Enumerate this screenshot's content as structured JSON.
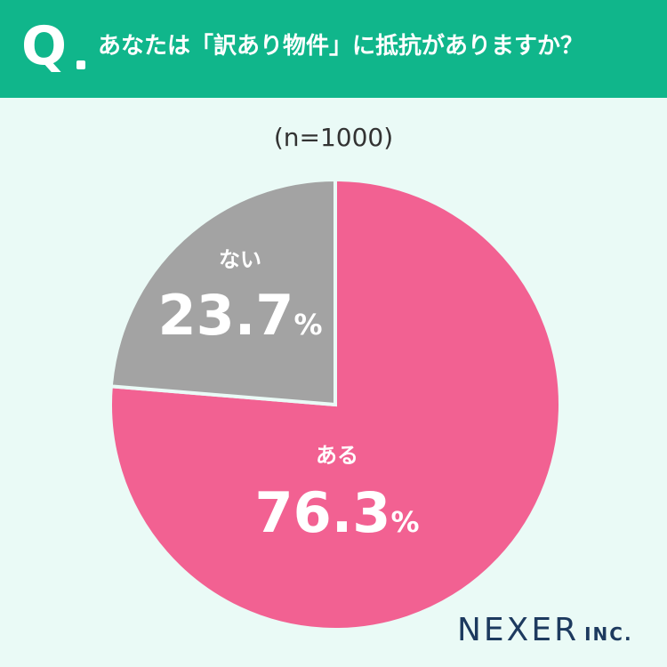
{
  "header": {
    "q_label": "Q",
    "question": "あなたは「訳あり物件」に抵抗がありますか？"
  },
  "sample_size": "(n=1000)",
  "colors": {
    "header_bg": "#10b68b",
    "background": "#eafaf6",
    "yes": "#f26192",
    "no": "#a3a3a3",
    "logo": "#1d3a5f"
  },
  "chart_data": {
    "type": "pie",
    "start": "12 o'clock, clockwise",
    "slices": [
      {
        "label": "ある",
        "value": 76.3,
        "display": "76.3",
        "unit": "%",
        "color": "#f26192"
      },
      {
        "label": "ない",
        "value": 23.7,
        "display": "23.7",
        "unit": "%",
        "color": "#a3a3a3"
      }
    ]
  },
  "logo": {
    "main": "NEXER",
    "sub": "INC."
  }
}
